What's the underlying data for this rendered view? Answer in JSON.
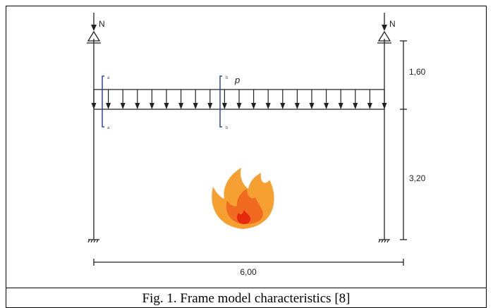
{
  "labels": {
    "n_left": "N",
    "n_right": "N",
    "load": "p",
    "dim_upper": "1,60",
    "dim_lower": "3,20",
    "dim_span": "6,00",
    "section_a_top": "a",
    "section_a_bottom": "a",
    "section_b_top": "b",
    "section_b_bottom": "b"
  },
  "caption": "Fig. 1. Frame model characteristics [8]"
}
